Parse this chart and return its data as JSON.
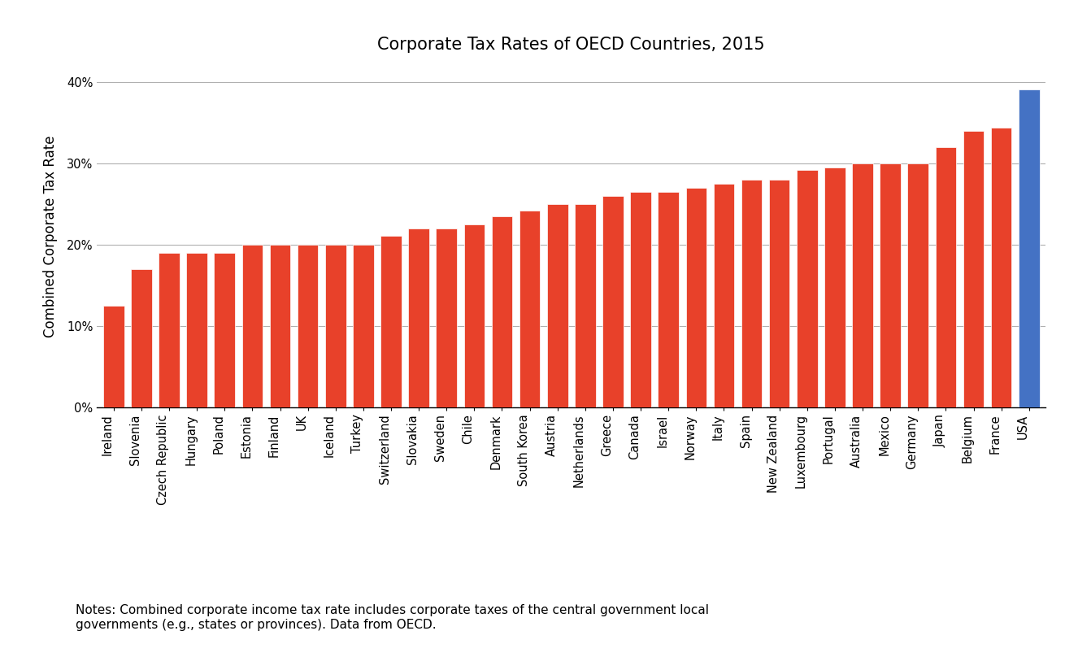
{
  "title": "Corporate Tax Rates of OECD Countries, 2015",
  "ylabel": "Combined Corporate Tax Rate",
  "note": "Notes: Combined corporate income tax rate includes corporate taxes of the central government local\ngovernments (e.g., states or provinces). Data from OECD.",
  "countries": [
    "Ireland",
    "Slovenia",
    "Czech Republic",
    "Hungary",
    "Poland",
    "Estonia",
    "Finland",
    "UK",
    "Iceland",
    "Turkey",
    "Switzerland",
    "Slovakia",
    "Sweden",
    "Chile",
    "Denmark",
    "South Korea",
    "Austria",
    "Netherlands",
    "Greece",
    "Canada",
    "Israel",
    "Norway",
    "Italy",
    "Spain",
    "New Zealand",
    "Luxembourg",
    "Portugal",
    "Australia",
    "Mexico",
    "Germany",
    "Japan",
    "Belgium",
    "France",
    "USA"
  ],
  "values": [
    12.5,
    17.0,
    19.0,
    19.0,
    19.0,
    20.0,
    20.0,
    20.0,
    20.0,
    20.0,
    21.1,
    22.0,
    22.0,
    22.5,
    23.5,
    24.2,
    25.0,
    25.0,
    26.0,
    26.5,
    26.5,
    27.0,
    27.5,
    28.0,
    28.0,
    29.2,
    29.5,
    30.0,
    30.0,
    30.0,
    32.0,
    34.0,
    34.4,
    39.1
  ],
  "bar_colors": [
    "#e8412a",
    "#e8412a",
    "#e8412a",
    "#e8412a",
    "#e8412a",
    "#e8412a",
    "#e8412a",
    "#e8412a",
    "#e8412a",
    "#e8412a",
    "#e8412a",
    "#e8412a",
    "#e8412a",
    "#e8412a",
    "#e8412a",
    "#e8412a",
    "#e8412a",
    "#e8412a",
    "#e8412a",
    "#e8412a",
    "#e8412a",
    "#e8412a",
    "#e8412a",
    "#e8412a",
    "#e8412a",
    "#e8412a",
    "#e8412a",
    "#e8412a",
    "#e8412a",
    "#e8412a",
    "#e8412a",
    "#e8412a",
    "#e8412a",
    "#4472c4"
  ],
  "ylim": [
    0,
    42
  ],
  "yticks": [
    0,
    10,
    20,
    30,
    40
  ],
  "ytick_labels": [
    "0%",
    "10%",
    "20%",
    "30%",
    "40%"
  ],
  "background_color": "#ffffff",
  "grid_color": "#b0b0b0",
  "title_fontsize": 15,
  "axis_label_fontsize": 12,
  "tick_fontsize": 10.5,
  "note_fontsize": 11
}
